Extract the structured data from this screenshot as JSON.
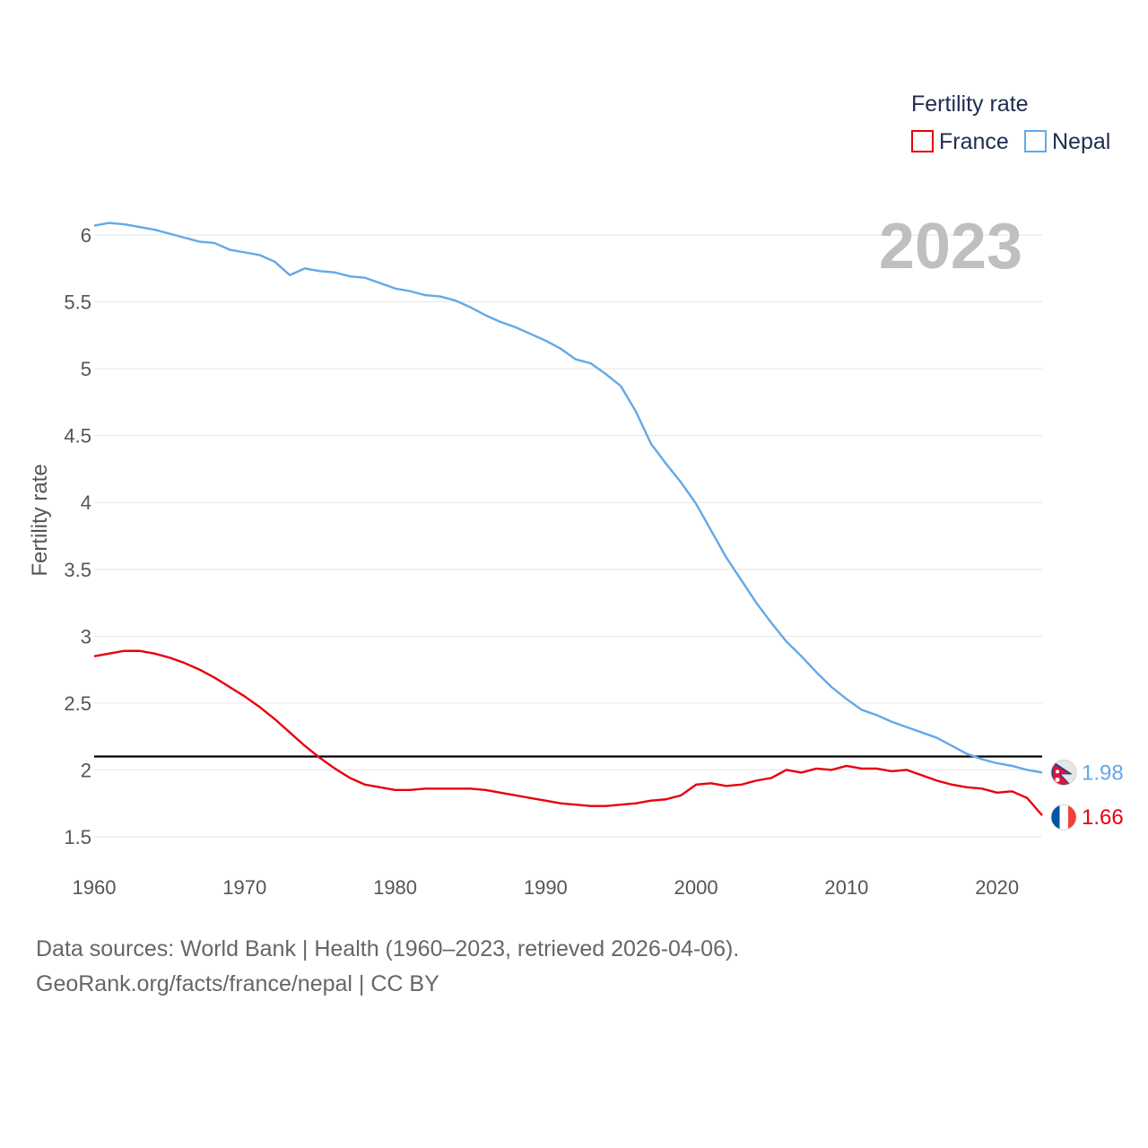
{
  "chart_data": {
    "type": "line",
    "ylabel": "Fertility rate",
    "xlim": [
      1960,
      2023
    ],
    "ylim": [
      1.5,
      6.2
    ],
    "yticks": [
      1.5,
      2,
      2.5,
      3,
      3.5,
      4,
      4.5,
      5,
      5.5,
      6
    ],
    "ytick_labels": [
      "1.5",
      "2",
      "2.5",
      "3",
      "3.5",
      "4",
      "4.5",
      "5",
      "5.5",
      "6"
    ],
    "xticks": [
      1960,
      1970,
      1980,
      1990,
      2000,
      2010,
      2020
    ],
    "xtick_labels": [
      "1960",
      "1970",
      "1980",
      "1990",
      "2000",
      "2010",
      "2020"
    ],
    "year_label": "2023",
    "legend_title": "Fertility rate",
    "reference_line": 2.1,
    "x": [
      1960,
      1961,
      1962,
      1963,
      1964,
      1965,
      1966,
      1967,
      1968,
      1969,
      1970,
      1971,
      1972,
      1973,
      1974,
      1975,
      1976,
      1977,
      1978,
      1979,
      1980,
      1981,
      1982,
      1983,
      1984,
      1985,
      1986,
      1987,
      1988,
      1989,
      1990,
      1991,
      1992,
      1993,
      1994,
      1995,
      1996,
      1997,
      1998,
      1999,
      2000,
      2001,
      2002,
      2003,
      2004,
      2005,
      2006,
      2007,
      2008,
      2009,
      2010,
      2011,
      2012,
      2013,
      2014,
      2015,
      2016,
      2017,
      2018,
      2019,
      2020,
      2021,
      2022,
      2023
    ],
    "series": [
      {
        "name": "France",
        "color": "#e8000b",
        "end_label": "1.66",
        "flag": "france-flag",
        "values": [
          2.85,
          2.87,
          2.89,
          2.89,
          2.87,
          2.84,
          2.8,
          2.75,
          2.69,
          2.62,
          2.55,
          2.47,
          2.38,
          2.28,
          2.18,
          2.09,
          2.01,
          1.94,
          1.89,
          1.87,
          1.85,
          1.85,
          1.86,
          1.86,
          1.86,
          1.86,
          1.85,
          1.83,
          1.81,
          1.79,
          1.77,
          1.75,
          1.74,
          1.73,
          1.73,
          1.74,
          1.75,
          1.77,
          1.78,
          1.81,
          1.89,
          1.9,
          1.88,
          1.89,
          1.92,
          1.94,
          2.0,
          1.98,
          2.01,
          2.0,
          2.03,
          2.01,
          2.01,
          1.99,
          2.0,
          1.96,
          1.92,
          1.89,
          1.87,
          1.86,
          1.83,
          1.84,
          1.79,
          1.66
        ]
      },
      {
        "name": "Nepal",
        "color": "#63a8e8",
        "end_label": "1.98",
        "flag": "nepal-flag",
        "values": [
          6.07,
          6.09,
          6.08,
          6.06,
          6.04,
          6.01,
          5.98,
          5.95,
          5.94,
          5.89,
          5.87,
          5.85,
          5.8,
          5.7,
          5.75,
          5.73,
          5.72,
          5.69,
          5.68,
          5.64,
          5.6,
          5.58,
          5.55,
          5.54,
          5.51,
          5.46,
          5.4,
          5.35,
          5.31,
          5.26,
          5.21,
          5.15,
          5.07,
          5.04,
          4.96,
          4.87,
          4.68,
          4.44,
          4.29,
          4.15,
          3.99,
          3.79,
          3.59,
          3.42,
          3.25,
          3.1,
          2.96,
          2.85,
          2.73,
          2.62,
          2.53,
          2.45,
          2.41,
          2.36,
          2.32,
          2.28,
          2.24,
          2.18,
          2.12,
          2.08,
          2.05,
          2.03,
          2.0,
          1.98
        ]
      }
    ]
  },
  "footer": {
    "line1": "Data sources: World Bank | Health (1960–2023, retrieved 2026-04-06).",
    "line2": "GeoRank.org/facts/france/nepal | CC BY"
  }
}
